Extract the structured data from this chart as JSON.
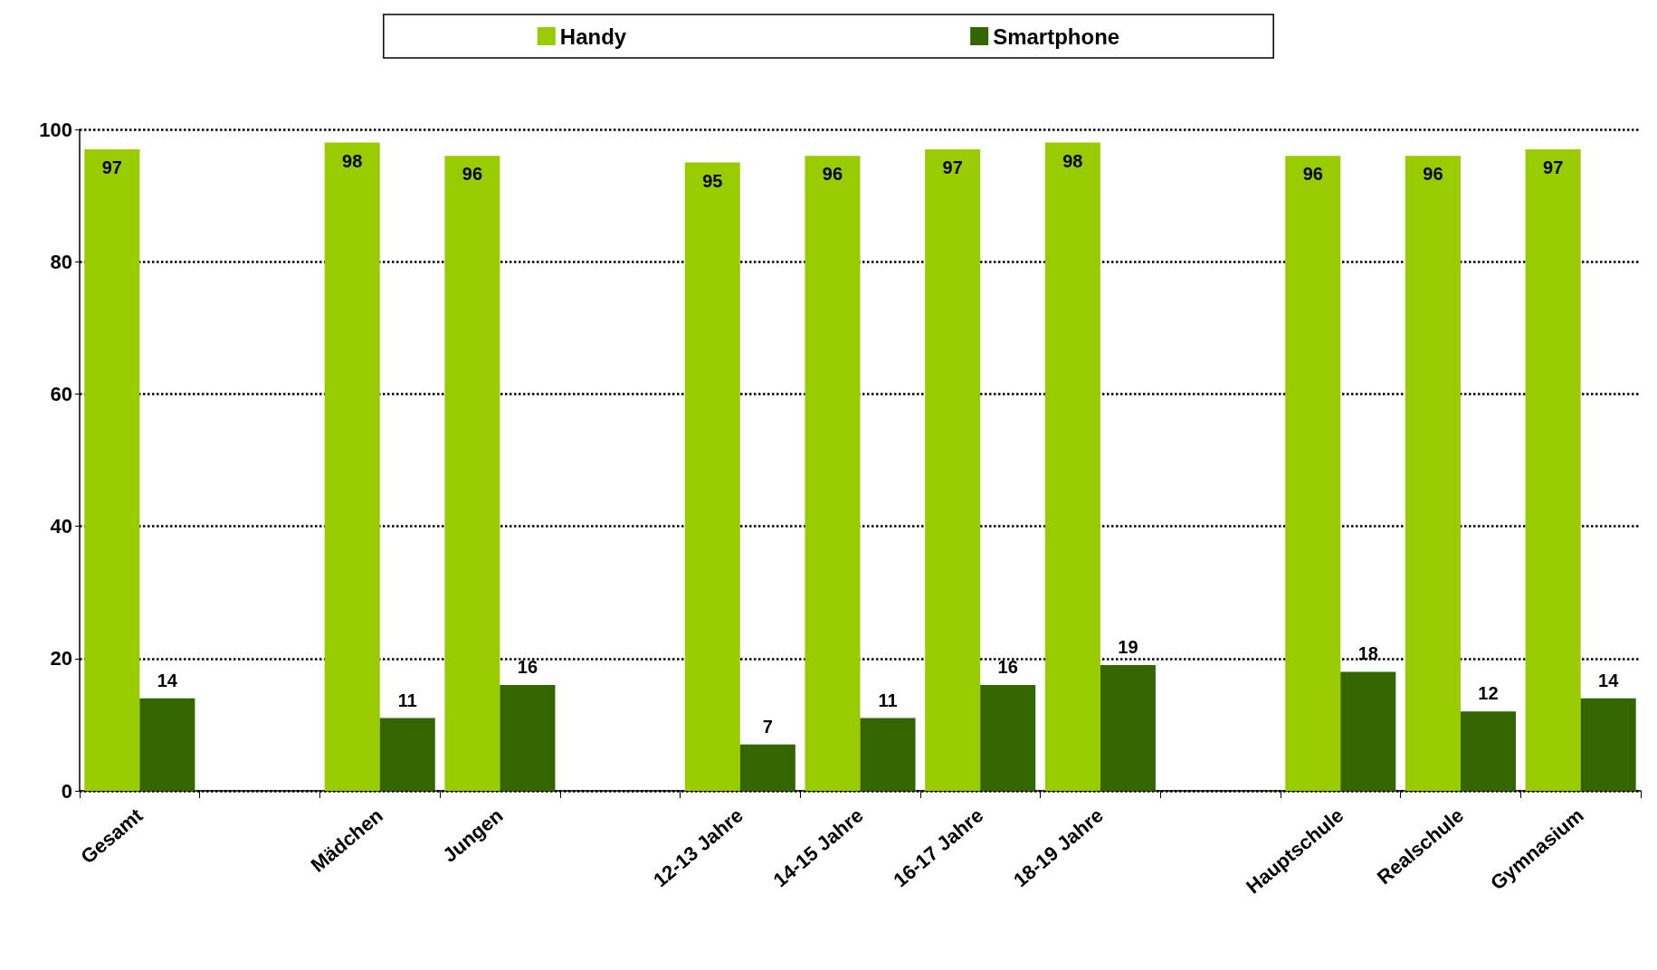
{
  "chart_data": {
    "type": "bar",
    "categories": [
      "Gesamt",
      null,
      "Mädchen",
      "Jungen",
      null,
      "12-13 Jahre",
      "14-15 Jahre",
      "16-17 Jahre",
      "18-19 Jahre",
      null,
      "Hauptschule",
      "Realschule",
      "Gymnasium"
    ],
    "series": [
      {
        "name": "Handy",
        "color": "#99cc00",
        "values": [
          97,
          null,
          98,
          96,
          null,
          95,
          96,
          97,
          98,
          null,
          96,
          96,
          97
        ]
      },
      {
        "name": "Smartphone",
        "color": "#336600",
        "values": [
          14,
          null,
          11,
          16,
          null,
          7,
          11,
          16,
          19,
          null,
          18,
          12,
          14
        ]
      }
    ],
    "ylim": [
      0,
      100
    ],
    "yticks": [
      0,
      20,
      40,
      60,
      80,
      100
    ],
    "grid": "y",
    "legend": "top",
    "data_labels": true
  }
}
